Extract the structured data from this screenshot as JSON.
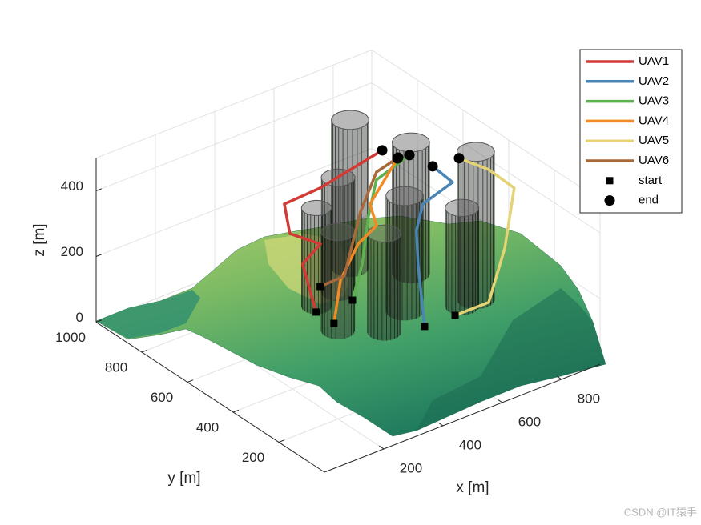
{
  "chart_data": {
    "type": "line3d",
    "xlabel": "x [m]",
    "ylabel": "y [m]",
    "zlabel": "z [m]",
    "xlim": [
      0,
      930
    ],
    "ylim": [
      0,
      1000
    ],
    "zlim": [
      0,
      500
    ],
    "xticks": [
      200,
      400,
      600,
      800
    ],
    "yticks": [
      200,
      400,
      600,
      800,
      1000
    ],
    "zticks": [
      0,
      200,
      400
    ],
    "grid": true,
    "legend_position": "upper right",
    "series": [
      {
        "name": "UAV1",
        "color": "#d23a35",
        "x": [
          392,
          465,
          535,
          451,
          461,
          557,
          735
        ],
        "y": [
          545,
          699,
          712,
          737,
          774,
          741,
          701
        ],
        "z": [
          100,
          150,
          180,
          230,
          300,
          330,
          400
        ]
      },
      {
        "name": "UAV2",
        "color": "#4a85b5",
        "x": [
          596,
          688,
          708,
          733,
          802,
          769
        ],
        "y": [
          335,
          483,
          516,
          520,
          480,
          524
        ],
        "z": [
          80,
          170,
          250,
          320,
          380,
          420
        ]
      },
      {
        "name": "UAV3",
        "color": "#5db14f",
        "x": [
          486,
          538,
          600,
          659,
          756
        ],
        "y": [
          508,
          533,
          586,
          628,
          609
        ],
        "z": [
          120,
          200,
          300,
          370,
          420
        ]
      },
      {
        "name": "UAV4",
        "color": "#f28b26",
        "x": [
          425,
          462,
          530,
          586,
          589,
          720
        ],
        "y": [
          510,
          529,
          541,
          533,
          565,
          615
        ],
        "z": [
          70,
          180,
          260,
          300,
          350,
          420
        ]
      },
      {
        "name": "UAV5",
        "color": "#e4d374",
        "x": [
          675,
          756,
          849,
          893,
          877,
          851
        ],
        "y": [
          304,
          262,
          312,
          328,
          419,
          515
        ],
        "z": [
          100,
          130,
          240,
          400,
          420,
          420
        ]
      },
      {
        "name": "UAV6",
        "color": "#a7683a",
        "x": [
          451,
          504,
          596,
          674,
          724
        ],
        "y": [
          604,
          567,
          616,
          647,
          617
        ],
        "z": [
          130,
          160,
          300,
          380,
          420
        ]
      }
    ],
    "start_label": "start",
    "end_label": "end",
    "obstacles": [
      {
        "x": 712,
        "y": 812,
        "radius": 50,
        "height": 450
      },
      {
        "x": 821,
        "y": 687,
        "radius": 50,
        "height": 400
      },
      {
        "x": 875,
        "y": 473,
        "radius": 50,
        "height": 450
      },
      {
        "x": 607,
        "y": 728,
        "radius": 45,
        "height": 350
      },
      {
        "x": 688,
        "y": 542,
        "radius": 50,
        "height": 350
      },
      {
        "x": 516,
        "y": 705,
        "radius": 40,
        "height": 300
      },
      {
        "x": 484,
        "y": 569,
        "radius": 45,
        "height": 300
      },
      {
        "x": 577,
        "y": 487,
        "radius": 45,
        "height": 300
      },
      {
        "x": 824,
        "y": 467,
        "radius": 45,
        "height": 300
      }
    ],
    "watermark": "CSDN @IT猿手"
  }
}
